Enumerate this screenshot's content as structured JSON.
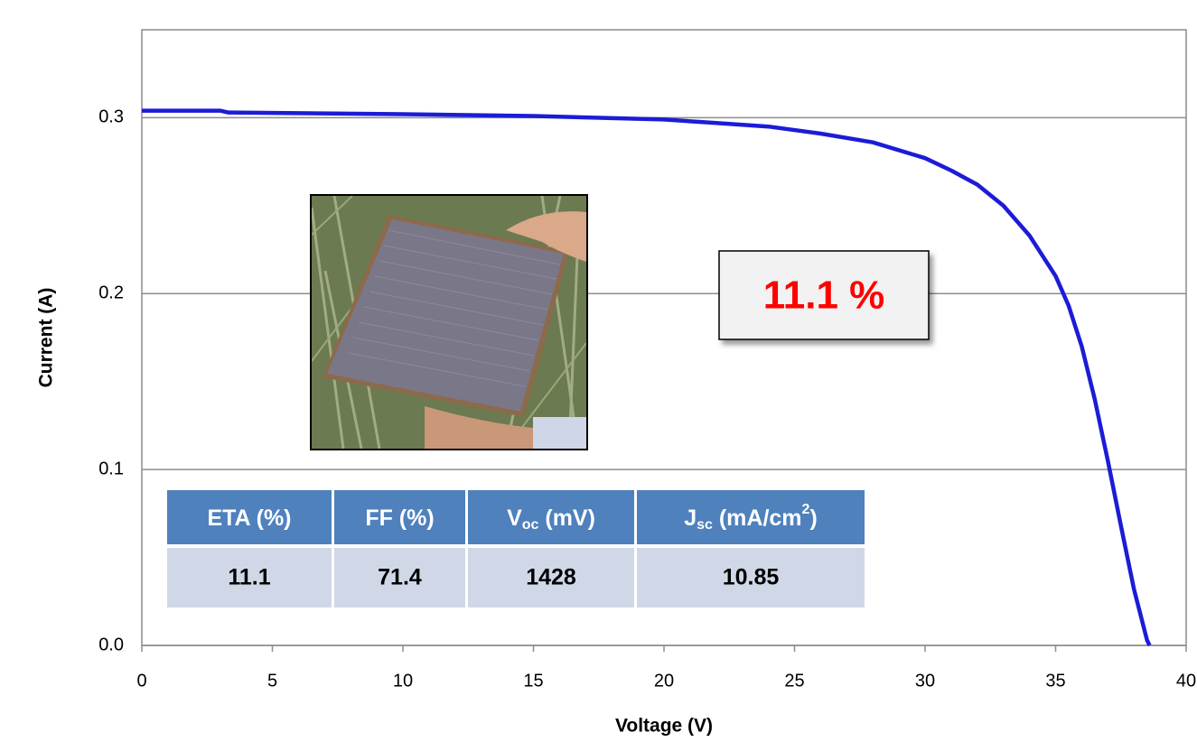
{
  "chart_data": {
    "type": "line",
    "x_label": "Voltage (V)",
    "y_label": "Current (A)",
    "x": [
      0,
      3,
      3.3,
      10,
      15,
      20,
      22,
      24,
      26,
      28,
      30,
      31,
      32,
      33,
      34,
      35,
      35.5,
      36,
      36.5,
      37,
      37.5,
      38,
      38.5,
      38.6
    ],
    "series": [
      {
        "color": "#1c1cd6",
        "values": [
          0.304,
          0.304,
          0.303,
          0.302,
          0.301,
          0.299,
          0.297,
          0.295,
          0.291,
          0.286,
          0.277,
          0.27,
          0.262,
          0.25,
          0.233,
          0.21,
          0.193,
          0.17,
          0.14,
          0.105,
          0.068,
          0.032,
          0.003,
          0
        ]
      }
    ],
    "xlim": [
      0,
      40
    ],
    "xticks": [
      0,
      5,
      10,
      15,
      20,
      25,
      30,
      35,
      40
    ],
    "ylim": [
      0,
      0.35
    ],
    "yticks": [
      {
        "value": 0,
        "label": "0.0"
      },
      0.1,
      0.2,
      0.3
    ],
    "grid": true,
    "annotation": "11.1 %",
    "table": {
      "headers": [
        [
          {
            "text": "ETA (%)"
          }
        ],
        [
          {
            "text": "FF (%)"
          }
        ],
        [
          {
            "text": "V"
          },
          {
            "text": "oc",
            "style": "sub"
          },
          {
            "text": " (mV)"
          }
        ],
        [
          {
            "text": "J"
          },
          {
            "text": "sc",
            "style": "sub"
          },
          {
            "text": " (mA/cm"
          },
          {
            "text": "2",
            "style": "sup"
          },
          {
            "text": ")"
          }
        ]
      ],
      "rows": [
        [
          11.1,
          71.4,
          1428,
          10.85
        ]
      ]
    }
  }
}
